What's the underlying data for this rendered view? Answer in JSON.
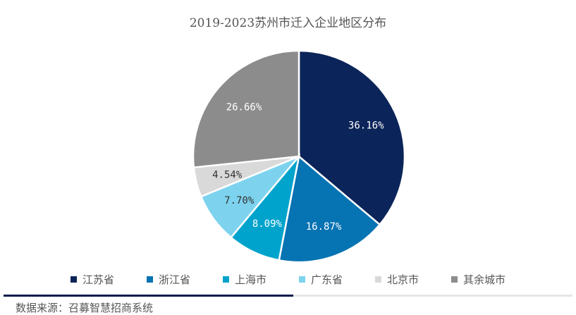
{
  "chart_data": {
    "type": "pie",
    "title": "2019-2023苏州市迁入企业地区分布",
    "categories": [
      "江苏省",
      "浙江省",
      "上海市",
      "广东省",
      "北京市",
      "其余城市"
    ],
    "values": [
      36.16,
      16.87,
      8.09,
      7.7,
      4.54,
      26.66
    ],
    "labels": [
      "36.16%",
      "16.87%",
      "8.09%",
      "7.70%",
      "4.54%",
      "26.66%"
    ],
    "colors": [
      "#0b2459",
      "#0673b3",
      "#00a3cc",
      "#7dd3ee",
      "#d9d9d9",
      "#8c8c8c"
    ],
    "label_colors": [
      "#ffffff",
      "#ffffff",
      "#ffffff",
      "#333333",
      "#333333",
      "#ffffff"
    ],
    "legend_position": "bottom"
  },
  "source": "数据来源：召募智慧招商系统"
}
